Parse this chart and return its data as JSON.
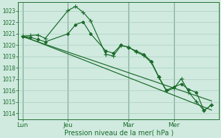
{
  "background_color": "#d0eae0",
  "grid_color": "#a8ccbc",
  "line_color": "#1a6b2a",
  "xlabel": "Pression niveau de la mer( hPa )",
  "ylim": [
    1013.5,
    1023.8
  ],
  "yticks": [
    1014,
    1015,
    1016,
    1017,
    1018,
    1019,
    1020,
    1021,
    1022,
    1023
  ],
  "xtick_labels": [
    "Lun",
    "Jeu",
    "Mar",
    "Mer"
  ],
  "xtick_positions": [
    0,
    3,
    7,
    10
  ],
  "xlim": [
    -0.3,
    13.0
  ],
  "vlines": [
    0,
    3,
    7,
    10
  ],
  "series": [
    {
      "x": [
        0,
        0.5,
        1.0,
        1.5,
        3.0,
        3.5,
        4.0,
        4.5,
        5.5,
        6.0,
        6.5,
        7.0,
        7.5,
        8.0,
        8.5,
        9.0,
        9.5,
        10.0,
        10.5,
        11.0,
        11.5,
        12.0,
        12.5
      ],
      "y": [
        1020.8,
        1020.85,
        1020.9,
        1020.6,
        1023.05,
        1023.4,
        1022.9,
        1022.15,
        1019.2,
        1019.05,
        1019.95,
        1019.85,
        1019.4,
        1019.1,
        1018.5,
        1017.2,
        1016.0,
        1016.2,
        1017.05,
        1015.85,
        1015.05,
        1014.25,
        1014.75
      ],
      "marker": "+",
      "markersize": 4,
      "lw": 0.9
    },
    {
      "x": [
        0,
        0.5,
        1.0,
        1.5,
        3.0,
        3.5,
        4.0,
        4.5,
        5.5,
        6.0,
        6.5,
        7.0,
        7.5,
        8.0,
        8.5,
        9.0,
        9.5,
        10.0,
        10.5,
        11.0,
        11.5,
        12.0,
        12.5
      ],
      "y": [
        1020.75,
        1020.7,
        1020.5,
        1020.3,
        1021.0,
        1021.8,
        1022.05,
        1021.0,
        1019.5,
        1019.3,
        1020.0,
        1019.8,
        1019.5,
        1019.2,
        1018.6,
        1017.25,
        1016.05,
        1016.3,
        1016.6,
        1016.1,
        1015.85,
        1014.25,
        1014.75
      ],
      "marker": "D",
      "markersize": 2.2,
      "lw": 0.9
    },
    {
      "x": [
        0,
        12.5
      ],
      "y": [
        1020.8,
        1014.3
      ],
      "marker": "None",
      "markersize": 0,
      "lw": 0.9
    },
    {
      "x": [
        0,
        12.5
      ],
      "y": [
        1020.75,
        1015.1
      ],
      "marker": "None",
      "markersize": 0,
      "lw": 0.9
    }
  ]
}
